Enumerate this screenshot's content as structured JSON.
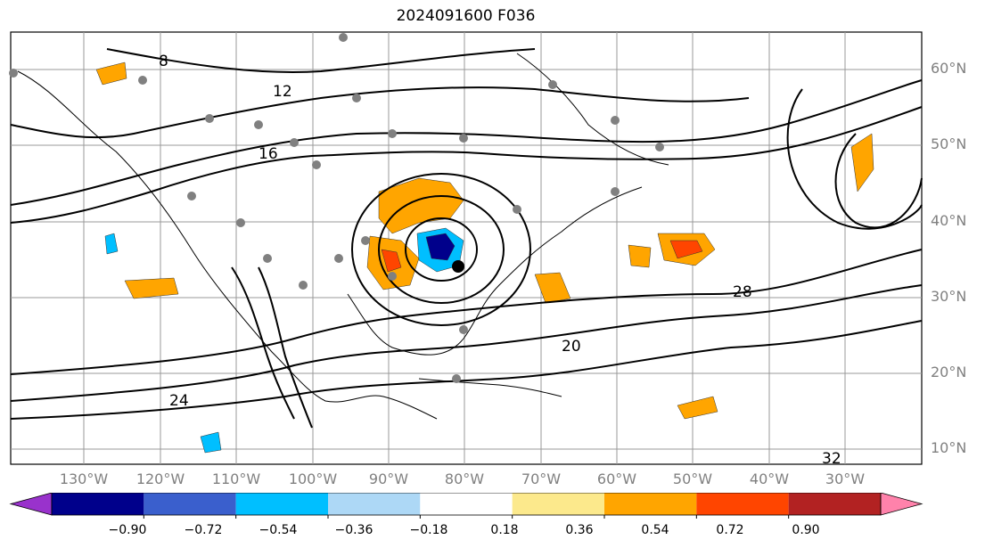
{
  "title": "2024091600 F036",
  "map": {
    "lat_labels": [
      "60°N",
      "50°N",
      "40°N",
      "30°N",
      "20°N",
      "10°N"
    ],
    "lon_labels": [
      "130°W",
      "120°W",
      "110°W",
      "100°W",
      "90°W",
      "80°W",
      "70°W",
      "60°W",
      "50°W",
      "40°W",
      "30°W"
    ],
    "contour_labels": [
      "8",
      "12",
      "16",
      "20",
      "24",
      "28",
      "32"
    ],
    "gridlines": true
  },
  "colorbar": {
    "ticks": [
      "−0.90",
      "−0.72",
      "−0.54",
      "−0.36",
      "−0.18",
      "0.18",
      "0.36",
      "0.54",
      "0.72",
      "0.90"
    ],
    "colors": [
      "#9932cc",
      "#00008b",
      "#3a5fcd",
      "#00bfff",
      "#add8f6",
      "#ffffff",
      "#fce98c",
      "#ffa500",
      "#ff4500",
      "#b22222",
      "#ff82ab"
    ],
    "extend": "both"
  }
}
